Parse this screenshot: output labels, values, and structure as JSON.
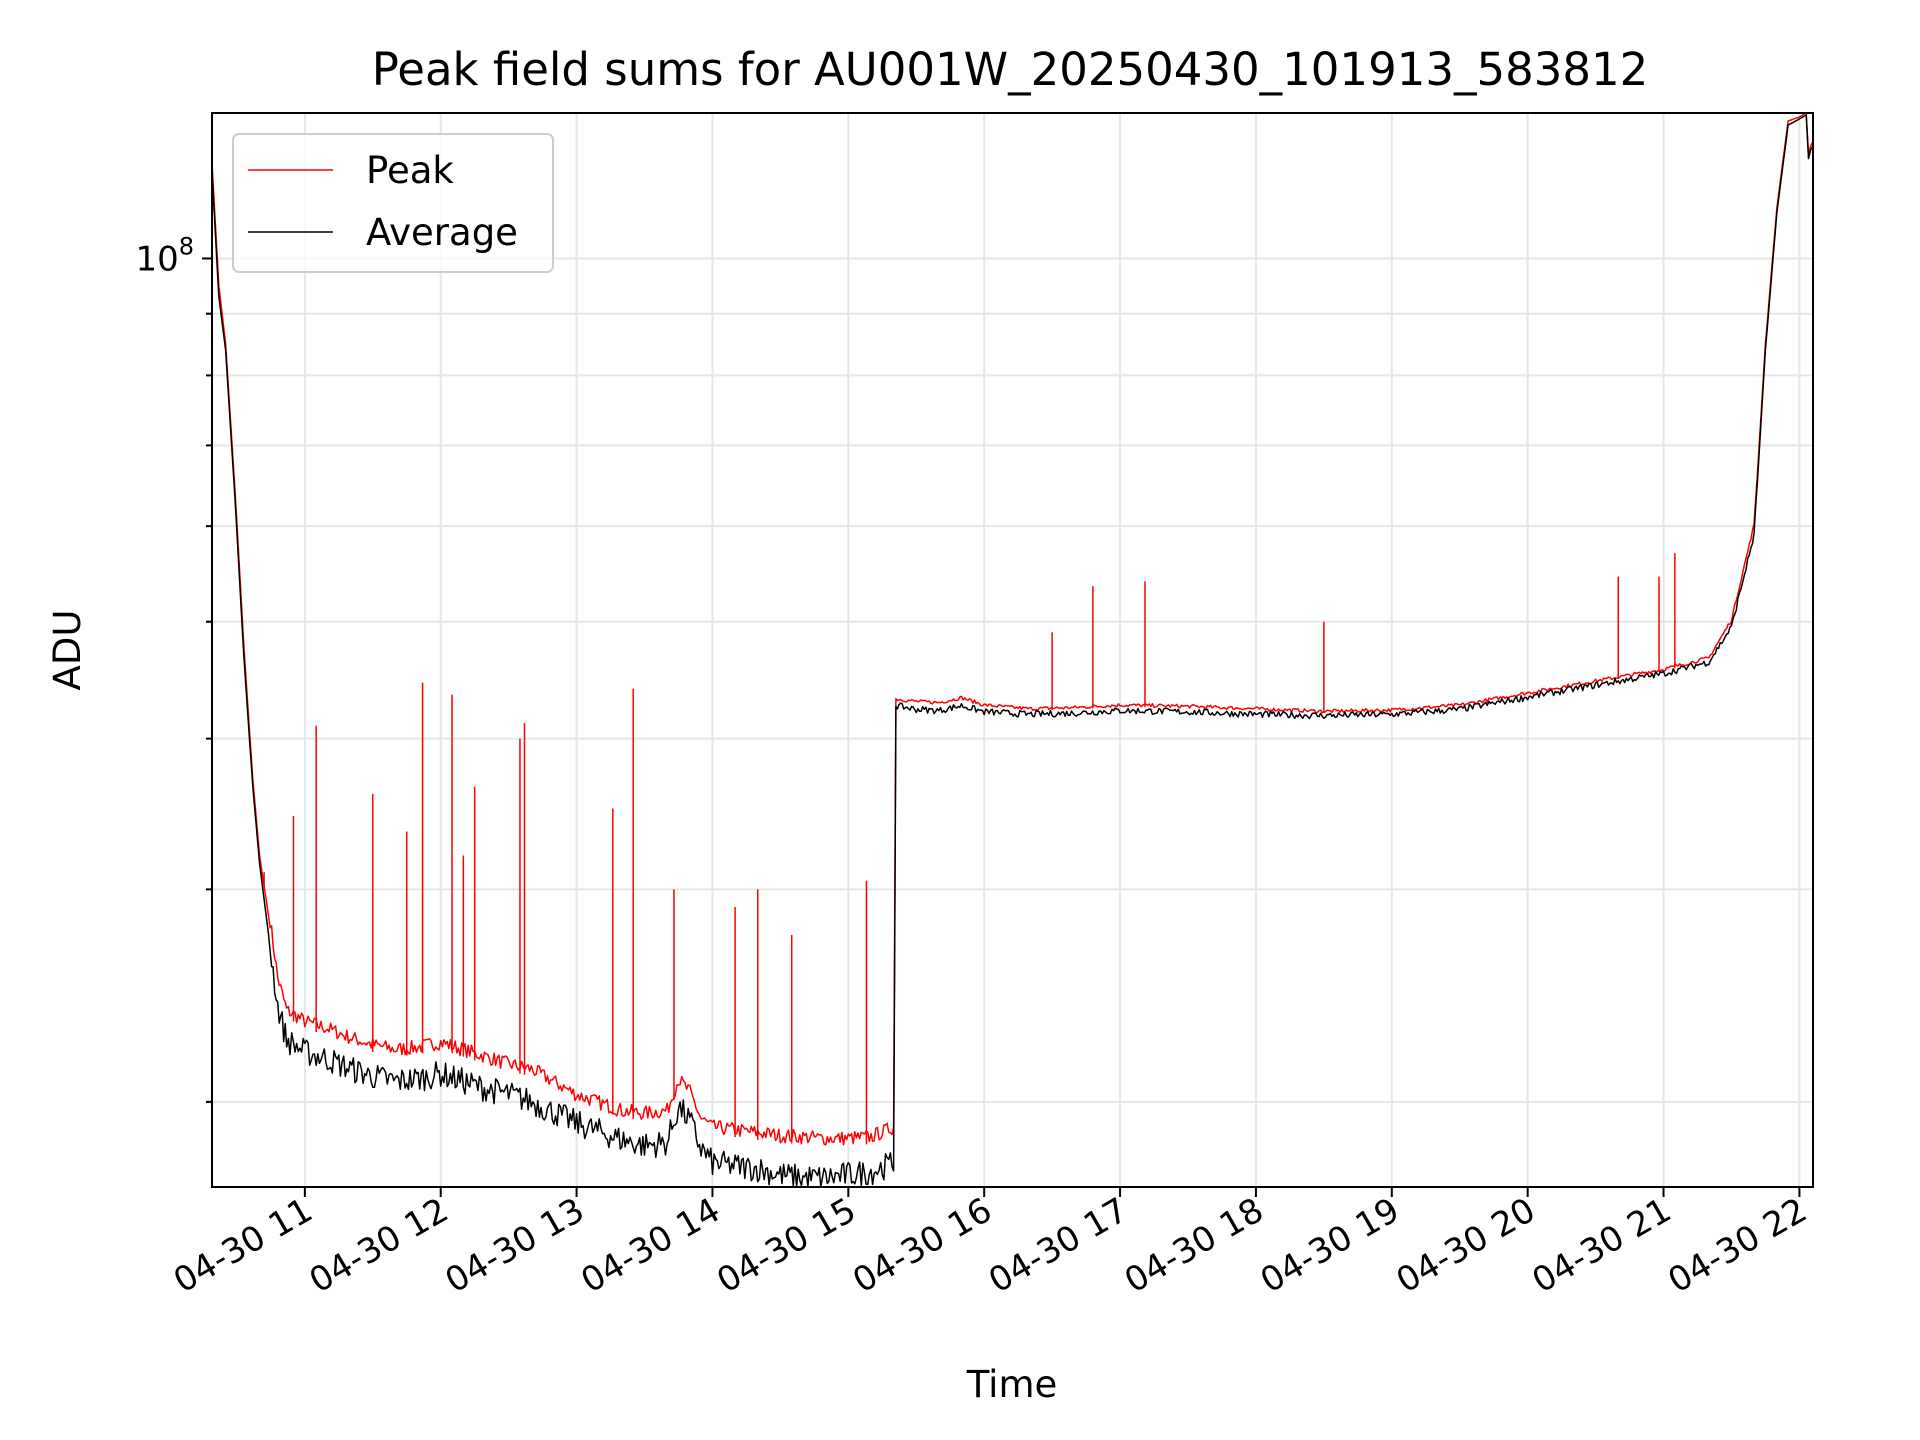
{
  "chart_data": {
    "type": "line",
    "title": "Peak field sums for AU001W_20250430_101913_583812",
    "xlabel": "Time",
    "ylabel": "ADU",
    "yscale": "log",
    "xlim": [
      "04-30 10:19",
      "04-30 22:06"
    ],
    "ylim": [
      17000000,
      132000000
    ],
    "grid": true,
    "legend": {
      "placement": "top-left",
      "entries": [
        "Peak",
        "Average"
      ]
    },
    "x_tick_labels": [
      "04-30 11",
      "04-30 12",
      "04-30 13",
      "04-30 14",
      "04-30 15",
      "04-30 16",
      "04-30 17",
      "04-30 18",
      "04-30 19",
      "04-30 20",
      "04-30 21",
      "04-30 22"
    ],
    "y_tick_label": {
      "base": "10",
      "exponent": "8",
      "value": 100000000
    },
    "series": [
      {
        "name": "Peak",
        "color": "#ff0000",
        "x": [
          "10:19",
          "10:22",
          "10:25",
          "10:29",
          "10:33",
          "10:37",
          "10:40",
          "10:44",
          "10:48",
          "10:52",
          "11:00",
          "11:10",
          "11:20",
          "11:30",
          "11:40",
          "11:50",
          "12:00",
          "12:10",
          "12:20",
          "12:30",
          "12:40",
          "12:50",
          "13:00",
          "13:10",
          "13:20",
          "13:30",
          "13:40",
          "13:45",
          "13:50",
          "13:55",
          "14:00",
          "14:10",
          "14:20",
          "14:30",
          "14:40",
          "14:50",
          "15:00",
          "15:10",
          "15:20",
          "15:21",
          "15:30",
          "15:40",
          "15:50",
          "16:00",
          "16:20",
          "16:40",
          "17:00",
          "17:30",
          "18:00",
          "18:30",
          "19:00",
          "19:30",
          "20:00",
          "20:30",
          "21:00",
          "21:20",
          "21:30",
          "21:40",
          "21:45",
          "21:50",
          "21:55",
          "22:00",
          "22:03",
          "22:04",
          "22:05",
          "22:06"
        ],
        "y": [
          120000000,
          95000000,
          85000000,
          65000000,
          48000000,
          37000000,
          32000000,
          28500000,
          25000000,
          23500000,
          23000000,
          22700000,
          22300000,
          22000000,
          21800000,
          21900000,
          22100000,
          21800000,
          21500000,
          21200000,
          21000000,
          20500000,
          20000000,
          19700000,
          19400000,
          19300000,
          19400000,
          20600000,
          20100000,
          19100000,
          18800000,
          18700000,
          18600000,
          18500000,
          18450000,
          18400000,
          18400000,
          18450000,
          18800000,
          43000000,
          42800000,
          42700000,
          43100000,
          42500000,
          42200000,
          42300000,
          42500000,
          42400000,
          42200000,
          42000000,
          42100000,
          42500000,
          43500000,
          44500000,
          45500000,
          46500000,
          50000000,
          60000000,
          85000000,
          110000000,
          130000000,
          131000000,
          132000000,
          122000000,
          124000000,
          125000000
        ],
        "spikes": [
          {
            "x": "10:42",
            "y": 31000000
          },
          {
            "x": "10:55",
            "y": 34500000
          },
          {
            "x": "11:05",
            "y": 41000000
          },
          {
            "x": "11:30",
            "y": 36000000
          },
          {
            "x": "11:45",
            "y": 33500000
          },
          {
            "x": "11:52",
            "y": 44500000
          },
          {
            "x": "12:05",
            "y": 43500000
          },
          {
            "x": "12:10",
            "y": 32000000
          },
          {
            "x": "12:15",
            "y": 36500000
          },
          {
            "x": "12:35",
            "y": 40000000
          },
          {
            "x": "12:37",
            "y": 41200000
          },
          {
            "x": "13:16",
            "y": 35000000
          },
          {
            "x": "13:25",
            "y": 44000000
          },
          {
            "x": "13:43",
            "y": 30000000
          },
          {
            "x": "14:10",
            "y": 29000000
          },
          {
            "x": "14:20",
            "y": 30000000
          },
          {
            "x": "14:35",
            "y": 27500000
          },
          {
            "x": "15:08",
            "y": 30500000
          },
          {
            "x": "16:30",
            "y": 49000000
          },
          {
            "x": "16:48",
            "y": 53500000
          },
          {
            "x": "17:11",
            "y": 54000000
          },
          {
            "x": "18:30",
            "y": 50000000
          },
          {
            "x": "20:40",
            "y": 54500000
          },
          {
            "x": "20:58",
            "y": 54500000
          },
          {
            "x": "21:05",
            "y": 57000000
          }
        ]
      },
      {
        "name": "Average",
        "color": "#000000",
        "x": [
          "10:19",
          "10:22",
          "10:25",
          "10:29",
          "10:33",
          "10:37",
          "10:40",
          "10:44",
          "10:48",
          "10:52",
          "11:00",
          "11:10",
          "11:20",
          "11:30",
          "11:40",
          "11:50",
          "12:00",
          "12:10",
          "12:20",
          "12:30",
          "12:40",
          "12:50",
          "13:00",
          "13:10",
          "13:20",
          "13:30",
          "13:40",
          "13:45",
          "13:50",
          "13:55",
          "14:00",
          "14:10",
          "14:20",
          "14:30",
          "14:40",
          "14:50",
          "15:00",
          "15:10",
          "15:20",
          "15:21",
          "15:30",
          "15:40",
          "15:50",
          "16:00",
          "16:20",
          "16:40",
          "17:00",
          "17:30",
          "18:00",
          "18:30",
          "19:00",
          "19:30",
          "20:00",
          "20:30",
          "21:00",
          "21:20",
          "21:30",
          "21:40",
          "21:45",
          "21:50",
          "21:55",
          "22:00",
          "22:03",
          "22:04",
          "22:05",
          "22:06"
        ],
        "y": [
          118000000,
          93000000,
          84000000,
          64000000,
          47000000,
          36500000,
          31500000,
          27500000,
          24000000,
          22500000,
          22000000,
          21700000,
          21300000,
          21000000,
          20800000,
          20900000,
          21100000,
          20800000,
          20500000,
          20300000,
          20000000,
          19600000,
          19200000,
          18900000,
          18600000,
          18400000,
          18500000,
          19800000,
          19300000,
          18300000,
          17800000,
          17700000,
          17600000,
          17400000,
          17300000,
          17300000,
          17400000,
          17500000,
          17800000,
          42600000,
          42300000,
          42200000,
          42600000,
          42100000,
          41900000,
          42000000,
          42200000,
          42100000,
          41900000,
          41800000,
          41900000,
          42300000,
          43300000,
          44300000,
          45300000,
          46300000,
          49500000,
          59000000,
          84000000,
          109000000,
          129000000,
          130500000,
          131500000,
          121000000,
          123000000,
          124000000
        ]
      }
    ]
  }
}
